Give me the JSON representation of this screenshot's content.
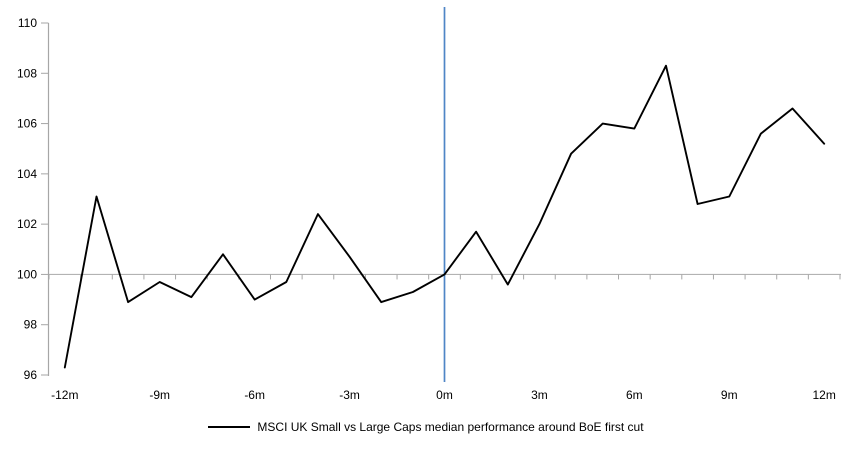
{
  "chart_data": {
    "type": "line",
    "title": "",
    "xlabel": "",
    "ylabel": "",
    "x": [
      -12,
      -11,
      -10,
      -9,
      -8,
      -7,
      -6,
      -5,
      -4,
      -3,
      -2,
      -1,
      0,
      1,
      2,
      3,
      4,
      5,
      6,
      7,
      8,
      9,
      10,
      11,
      12
    ],
    "series": [
      {
        "name": "MSCI UK Small vs Large Caps median performance around BoE first cut",
        "color": "#000000",
        "values": [
          96.3,
          103.1,
          98.9,
          99.7,
          99.1,
          100.8,
          99.0,
          99.7,
          102.4,
          100.7,
          98.9,
          99.3,
          100.0,
          101.7,
          99.6,
          102.0,
          104.8,
          106.0,
          105.8,
          108.3,
          102.8,
          103.1,
          105.6,
          106.6,
          105.2
        ]
      }
    ],
    "y_ticks": [
      110,
      108,
      106,
      104,
      102,
      100,
      98,
      96
    ],
    "x_tick_labels": [
      {
        "v": -12,
        "label": "-12m"
      },
      {
        "v": -9,
        "label": "-9m"
      },
      {
        "v": -6,
        "label": "-6m"
      },
      {
        "v": -3,
        "label": "-3m"
      },
      {
        "v": 0,
        "label": "0m"
      },
      {
        "v": 3,
        "label": "3m"
      },
      {
        "v": 6,
        "label": "6m"
      },
      {
        "v": 9,
        "label": "9m"
      },
      {
        "v": 12,
        "label": "12m"
      }
    ],
    "ylim": [
      96,
      110
    ],
    "xlim": [
      -12.5,
      12.5
    ],
    "baseline_value": 100,
    "event_line_x": 0,
    "grid": false,
    "legend_position": "bottom-center",
    "colors": {
      "series": "#000000",
      "event_line": "#4f86c6",
      "baseline": "#b3b3b3",
      "axis": "#a6a6a6",
      "text": "#000000",
      "background": "#ffffff"
    }
  },
  "legend": {
    "label": "MSCI UK Small vs Large Caps median performance around BoE first cut"
  }
}
